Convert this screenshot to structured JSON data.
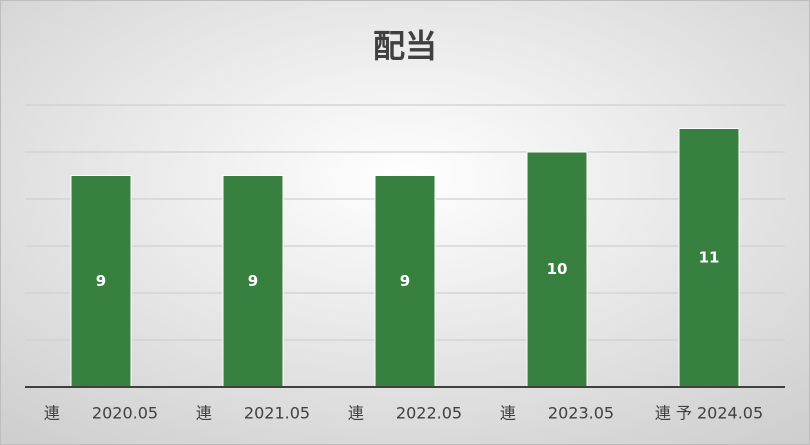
{
  "chart_data": {
    "type": "bar",
    "title": "配当",
    "categories": [
      "連　　2020.05",
      "連　　2021.05",
      "連　　2022.05",
      "連　　2023.05",
      "連 予 2024.05"
    ],
    "values": [
      9,
      9,
      9,
      10,
      11
    ],
    "color": "#37803f",
    "ylim": [
      0,
      12
    ],
    "yticks": [
      0,
      2,
      4,
      6,
      8,
      10,
      12
    ],
    "grid": true
  }
}
